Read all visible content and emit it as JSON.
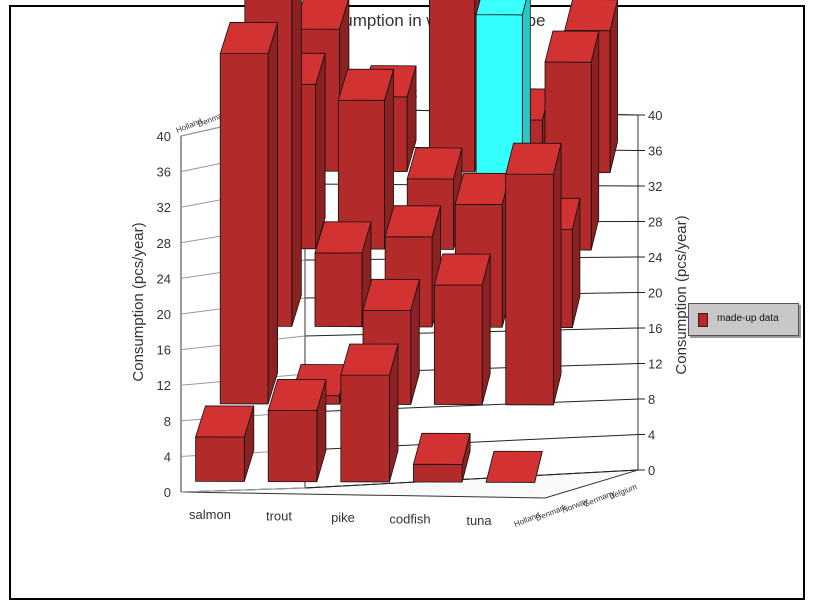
{
  "chart_data": {
    "type": "bar",
    "subtype": "3d-bar",
    "title": "Fish consumption in western Europe",
    "ylabel": "Consumption (pcs/year)",
    "ylabel_right": "Consumption (pcs/year)",
    "ylim": [
      0,
      40
    ],
    "yticks": [
      0,
      4,
      8,
      12,
      16,
      20,
      24,
      28,
      32,
      36,
      40
    ],
    "categories": [
      "salmon",
      "trout",
      "pike",
      "codfish",
      "tuna"
    ],
    "depth_categories": [
      "Holland",
      "Denmark",
      "Norway",
      "Germany",
      "Belgium"
    ],
    "series": [
      {
        "name": "Holland",
        "values": [
          5,
          8,
          12,
          2,
          0
        ]
      },
      {
        "name": "Denmark",
        "values": [
          41,
          1,
          11,
          14,
          27
        ]
      },
      {
        "name": "Norway",
        "values": [
          40,
          9,
          11,
          15,
          12
        ]
      },
      {
        "name": "Germany",
        "values": [
          21,
          19,
          9,
          30,
          24
        ]
      },
      {
        "name": "Belgium",
        "values": [
          19,
          10,
          25,
          7,
          19
        ]
      }
    ],
    "highlighted": {
      "category": "codfish",
      "depth": "Germany",
      "color": "#33ffff"
    },
    "legend": {
      "label": "made-up data",
      "position": "right"
    },
    "grid": true,
    "bar_color": "#b22a2a",
    "highlight_color": "#33ffff"
  }
}
